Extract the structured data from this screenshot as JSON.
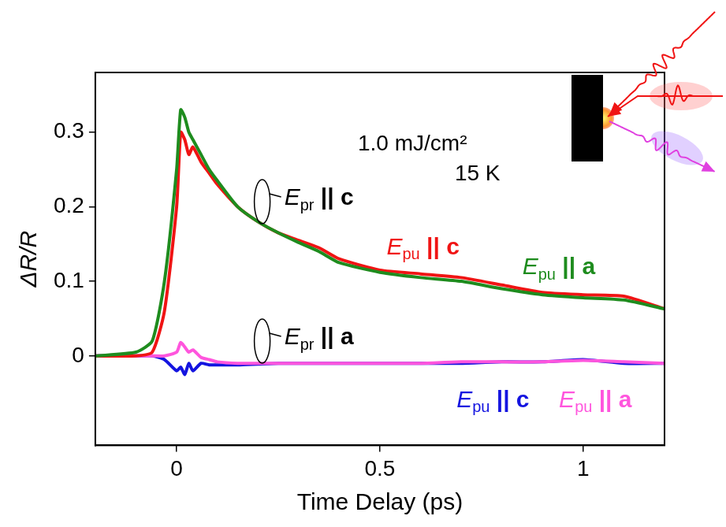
{
  "chart_data": {
    "type": "line",
    "x_label": "Time Delay (ps)",
    "y_label": "ΔR/R",
    "x": [
      -0.2,
      -0.1,
      -0.06,
      -0.03,
      0,
      0.01,
      0.02,
      0.03,
      0.04,
      0.06,
      0.08,
      0.1,
      0.15,
      0.2,
      0.25,
      0.3,
      0.35,
      0.4,
      0.5,
      0.6,
      0.7,
      0.8,
      0.9,
      1.0,
      1.1,
      1.2
    ],
    "series": [
      {
        "color": "#1e8c1e",
        "values": [
          0,
          0.005,
          0.02,
          0.1,
          0.25,
          0.33,
          0.32,
          0.3,
          0.29,
          0.27,
          0.25,
          0.235,
          0.2,
          0.18,
          0.165,
          0.152,
          0.14,
          0.125,
          0.112,
          0.105,
          0.1,
          0.09,
          0.082,
          0.078,
          0.075,
          0.063
        ]
      },
      {
        "color": "#f01414",
        "values": [
          0,
          0,
          0.005,
          0.06,
          0.2,
          0.3,
          0.29,
          0.27,
          0.28,
          0.26,
          0.245,
          0.23,
          0.2,
          0.18,
          0.165,
          0.155,
          0.145,
          0.13,
          0.115,
          0.11,
          0.105,
          0.095,
          0.085,
          0.082,
          0.08,
          0.063
        ]
      },
      {
        "color": "#ff55dd",
        "values": [
          0,
          0,
          0,
          0,
          0.005,
          0.018,
          0.012,
          0.005,
          0.008,
          -0.002,
          -0.005,
          -0.008,
          -0.01,
          -0.01,
          -0.01,
          -0.01,
          -0.01,
          -0.01,
          -0.01,
          -0.01,
          -0.008,
          -0.008,
          -0.008,
          -0.006,
          -0.008,
          -0.01
        ]
      },
      {
        "color": "#1414e0",
        "values": [
          0,
          0,
          0,
          -0.005,
          -0.02,
          -0.015,
          -0.025,
          -0.01,
          -0.02,
          -0.01,
          -0.012,
          -0.012,
          -0.012,
          -0.011,
          -0.01,
          -0.01,
          -0.01,
          -0.01,
          -0.01,
          -0.01,
          -0.01,
          -0.008,
          -0.008,
          -0.005,
          -0.01,
          -0.01
        ]
      }
    ],
    "xlim": [
      -0.2,
      1.2
    ],
    "xticks": [
      0,
      0.5,
      1
    ],
    "ylim": [
      -0.12,
      0.38
    ],
    "yticks": [
      0,
      0.1,
      0.2,
      0.3
    ],
    "grid": false,
    "annotations": [
      {
        "parts": [
          {
            "text": "1.0 mJ/cm²"
          }
        ],
        "color": "#000000",
        "x": 0.58,
        "y": 0.284
      },
      {
        "parts": [
          {
            "text": "15 K"
          }
        ],
        "color": "#000000",
        "x": 0.74,
        "y": 0.243
      },
      {
        "parts": [
          {
            "text": "E"
          },
          {
            "text": "pr",
            "sub": true
          },
          {
            "text": " || c"
          }
        ],
        "color": "#000000",
        "x": 0.35,
        "y": 0.211,
        "bracket": true
      },
      {
        "parts": [
          {
            "text": "E"
          },
          {
            "text": "pu",
            "sub": true
          },
          {
            "text": " || c"
          }
        ],
        "color": "#f01414",
        "x": 0.606,
        "y": 0.145
      },
      {
        "parts": [
          {
            "text": "E"
          },
          {
            "text": "pu",
            "sub": true
          },
          {
            "text": " || a"
          }
        ],
        "color": "#1e8c1e",
        "x": 0.94,
        "y": 0.118
      },
      {
        "parts": [
          {
            "text": "E"
          },
          {
            "text": "pr",
            "sub": true
          },
          {
            "text": " || a"
          }
        ],
        "color": "#000000",
        "x": 0.35,
        "y": 0.024,
        "bracket": true
      },
      {
        "parts": [
          {
            "text": "E"
          },
          {
            "text": "pu",
            "sub": true
          },
          {
            "text": " || c"
          }
        ],
        "color": "#1414e0",
        "x": 0.778,
        "y": -0.06
      },
      {
        "parts": [
          {
            "text": "E"
          },
          {
            "text": "pu",
            "sub": true
          },
          {
            "text": " || a"
          }
        ],
        "color": "#ff55dd",
        "x": 1.03,
        "y": -0.06
      }
    ]
  }
}
